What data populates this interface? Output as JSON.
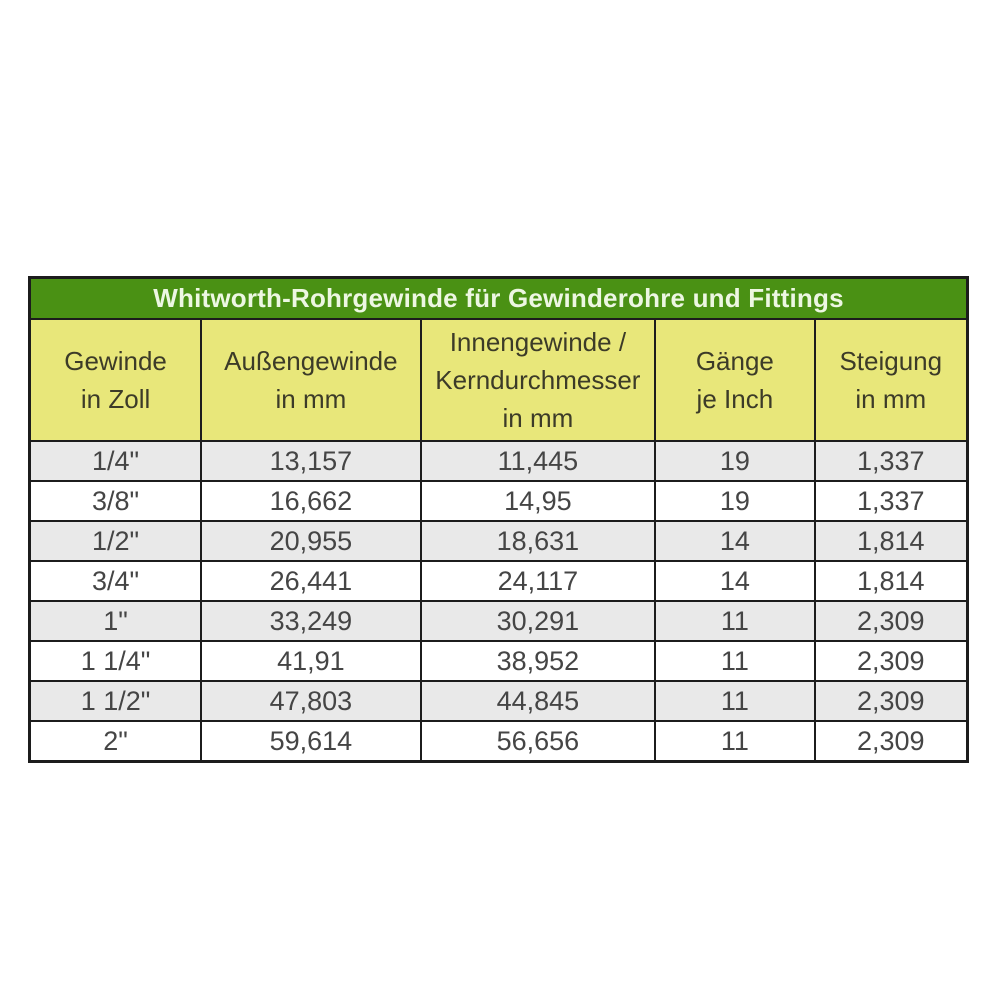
{
  "title": "Whitworth-Rohrgewinde für Gewinderohre und Fittings",
  "colors": {
    "header_green": "#4a9114",
    "header_yellow": "#e8e77a",
    "row_alt_gray": "#e9e9e9",
    "title_text": "#edf7e2",
    "header_text": "#3c3b28",
    "body_text": "#454545",
    "border": "#1c1c1c"
  },
  "chart_data": {
    "type": "table",
    "title": "Whitworth-Rohrgewinde für Gewinderohre und Fittings",
    "columns": [
      {
        "lines": [
          "Gewinde",
          "in Zoll"
        ]
      },
      {
        "lines": [
          "Außengewinde",
          "in mm"
        ]
      },
      {
        "lines": [
          "Innengewinde /",
          "Kerndurchmesser",
          "in mm"
        ]
      },
      {
        "lines": [
          "Gänge",
          "je Inch"
        ]
      },
      {
        "lines": [
          "Steigung",
          "in mm"
        ]
      }
    ],
    "rows": [
      [
        "1/4\"",
        "13,157",
        "11,445",
        "19",
        "1,337"
      ],
      [
        "3/8\"",
        "16,662",
        "14,95",
        "19",
        "1,337"
      ],
      [
        "1/2\"",
        "20,955",
        "18,631",
        "14",
        "1,814"
      ],
      [
        "3/4\"",
        "26,441",
        "24,117",
        "14",
        "1,814"
      ],
      [
        "1\"",
        "33,249",
        "30,291",
        "11",
        "2,309"
      ],
      [
        "1 1/4\"",
        "41,91",
        "38,952",
        "11",
        "2,309"
      ],
      [
        "1 1/2\"",
        "47,803",
        "44,845",
        "11",
        "2,309"
      ],
      [
        "2\"",
        "59,614",
        "56,656",
        "11",
        "2,309"
      ]
    ]
  }
}
